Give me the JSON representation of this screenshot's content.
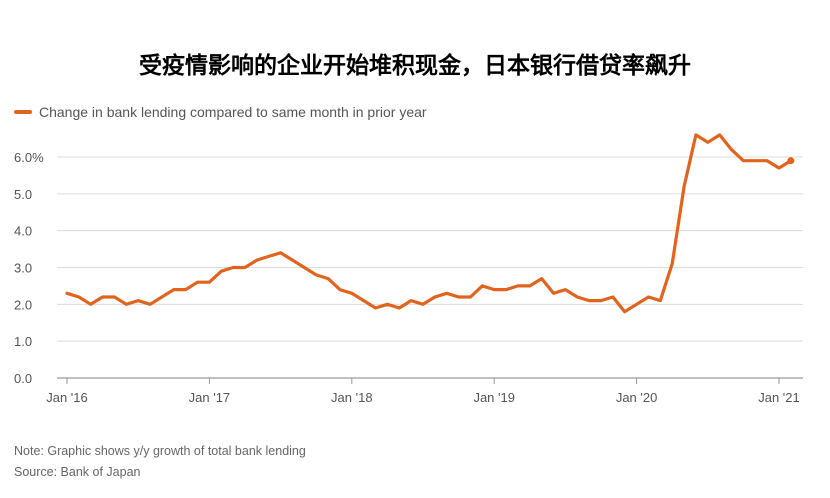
{
  "chart_data": {
    "type": "line",
    "title": "受疫情影响的企业开始堆积现金，日本银行借贷率飙升",
    "xlabel": "",
    "ylabel": "",
    "ylim": [
      0,
      6.6
    ],
    "y_ticks": [
      "6.0%",
      "5.0",
      "4.0",
      "3.0",
      "2.0",
      "1.0",
      "0.0"
    ],
    "y_tick_values": [
      6,
      5,
      4,
      3,
      2,
      1,
      0
    ],
    "x_ticks": [
      "Jan '16",
      "Jan '17",
      "Jan '18",
      "Jan '19",
      "Jan '20",
      "Jan '21"
    ],
    "x_tick_values": [
      "2016-01",
      "2017-01",
      "2018-01",
      "2019-01",
      "2020-01",
      "2021-01"
    ],
    "grid": true,
    "legend_position": "top-left",
    "series": [
      {
        "name": "Change in bank lending compared to same month in prior year",
        "color": "#e0641e",
        "x": [
          "2016-01",
          "2016-02",
          "2016-03",
          "2016-04",
          "2016-05",
          "2016-06",
          "2016-07",
          "2016-08",
          "2016-09",
          "2016-10",
          "2016-11",
          "2016-12",
          "2017-01",
          "2017-02",
          "2017-03",
          "2017-04",
          "2017-05",
          "2017-06",
          "2017-07",
          "2017-08",
          "2017-09",
          "2017-10",
          "2017-11",
          "2017-12",
          "2018-01",
          "2018-02",
          "2018-03",
          "2018-04",
          "2018-05",
          "2018-06",
          "2018-07",
          "2018-08",
          "2018-09",
          "2018-10",
          "2018-11",
          "2018-12",
          "2019-01",
          "2019-02",
          "2019-03",
          "2019-04",
          "2019-05",
          "2019-06",
          "2019-07",
          "2019-08",
          "2019-09",
          "2019-10",
          "2019-11",
          "2019-12",
          "2020-01",
          "2020-02",
          "2020-03",
          "2020-04",
          "2020-05",
          "2020-06",
          "2020-07",
          "2020-08",
          "2020-09",
          "2020-10",
          "2020-11",
          "2020-12",
          "2021-01",
          "2021-02"
        ],
        "values": [
          2.3,
          2.2,
          2.0,
          2.2,
          2.2,
          2.0,
          2.1,
          2.0,
          2.2,
          2.4,
          2.4,
          2.6,
          2.6,
          2.9,
          3.0,
          3.0,
          3.2,
          3.3,
          3.4,
          3.2,
          3.0,
          2.8,
          2.7,
          2.4,
          2.3,
          2.1,
          1.9,
          2.0,
          1.9,
          2.1,
          2.0,
          2.2,
          2.3,
          2.2,
          2.2,
          2.5,
          2.4,
          2.4,
          2.5,
          2.5,
          2.7,
          2.3,
          2.4,
          2.2,
          2.1,
          2.1,
          2.2,
          1.8,
          2.0,
          2.2,
          2.1,
          3.1,
          5.2,
          6.6,
          6.4,
          6.6,
          6.2,
          5.9,
          5.9,
          5.9,
          5.7,
          5.9
        ]
      }
    ]
  },
  "footer": {
    "note": "Note: Graphic shows y/y growth of total bank lending",
    "source": "Source: Bank of Japan"
  }
}
